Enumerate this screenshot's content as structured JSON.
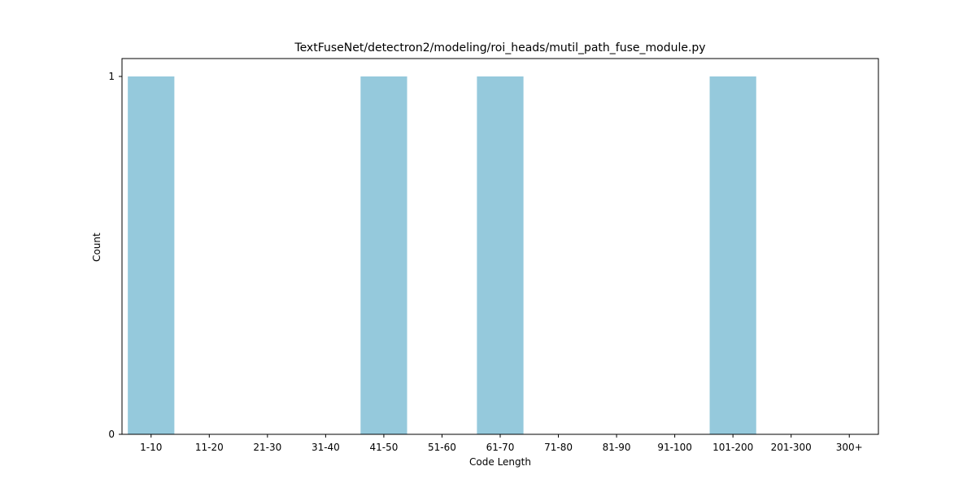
{
  "chart_data": {
    "type": "bar",
    "title": "TextFuseNet/detectron2/modeling/roi_heads/mutil_path_fuse_module.py",
    "xlabel": "Code Length",
    "ylabel": "Count",
    "categories": [
      "1-10",
      "11-20",
      "21-30",
      "31-40",
      "41-50",
      "51-60",
      "61-70",
      "71-80",
      "81-90",
      "91-100",
      "101-200",
      "201-300",
      "300+"
    ],
    "values": [
      1,
      0,
      0,
      0,
      1,
      0,
      1,
      0,
      0,
      0,
      1,
      0,
      0
    ],
    "ylim": [
      0,
      1.05
    ],
    "yticks": [
      0,
      1
    ],
    "grid": false,
    "bar_color": "#95c9dc"
  }
}
